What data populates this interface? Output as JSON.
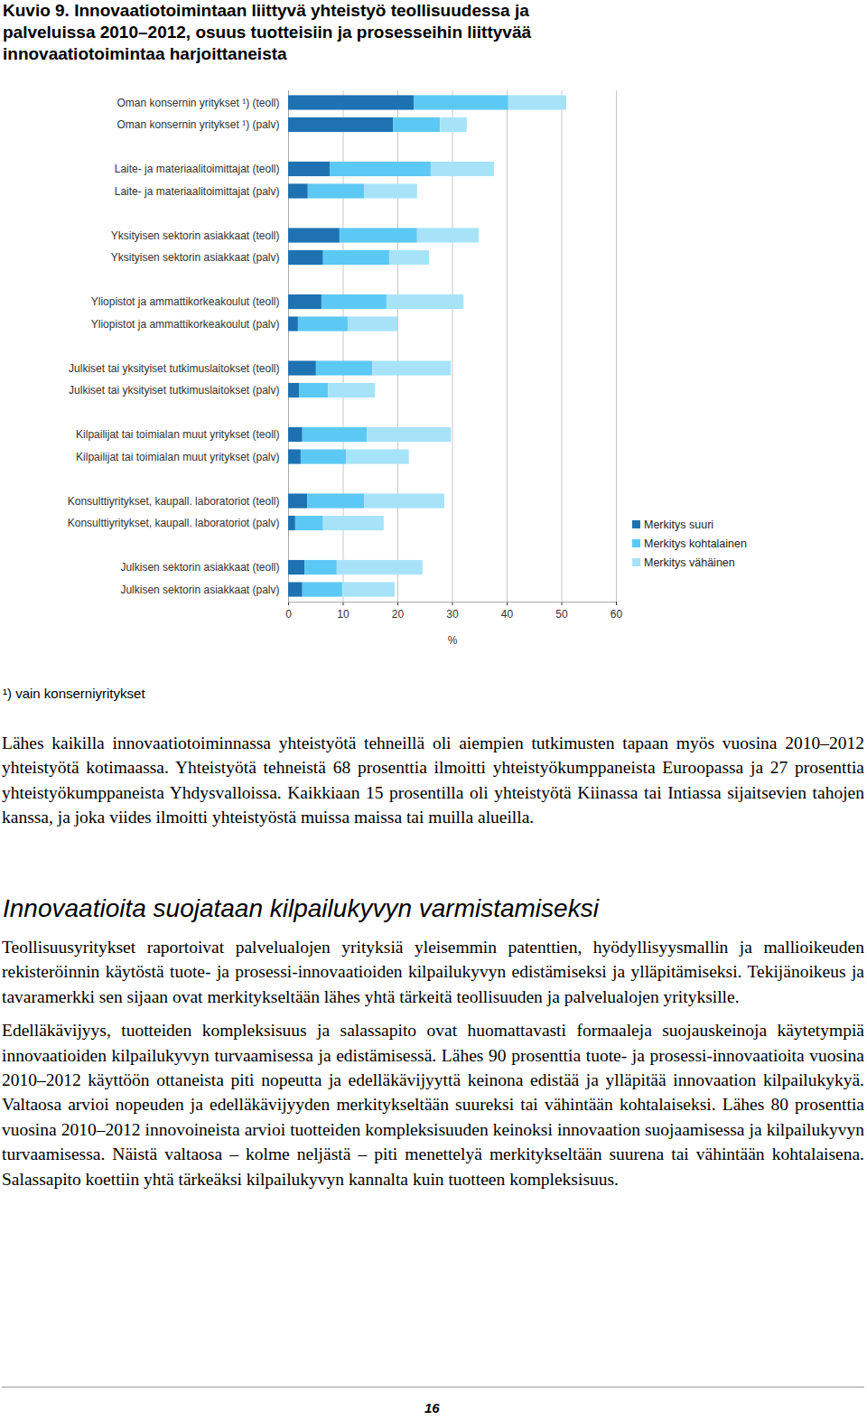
{
  "chart_data": {
    "type": "bar",
    "title": "Kuvio 9. Innovaatiotoimintaan liittyvä yhteistyö teollisuudessa ja palveluissa 2010–2012, osuus tuotteisiin ja prosesseihin liittyvää innovaatiotoimintaa harjoittaneista",
    "orientation": "horizontal",
    "stacked": true,
    "grid": true,
    "legend": "lower right",
    "xlabel": "%",
    "xlim": [
      0,
      60
    ],
    "xticks": [
      0,
      10,
      20,
      30,
      40,
      50,
      60
    ],
    "categories": [
      "Oman konsernin yritykset ¹) (teoll)",
      "Oman konsernin yritykset ¹) (palv)",
      "Laite- ja materiaalitoimittajat (teoll)",
      "Laite- ja materiaalitoimittajat (palv)",
      "Yksityisen sektorin asiakkaat (teoll)",
      "Yksityisen sektorin asiakkaat (palv)",
      "Yliopistot ja ammattikorkeakoulut (teoll)",
      "Yliopistot ja ammattikorkeakoulut (palv)",
      "Julkiset tai yksityiset tutkimuslaitokset (teoll)",
      "Julkiset tai yksityiset tutkimuslaitokset (palv)",
      "Kilpailijat tai toimialan muut yritykset (teoll)",
      "Kilpailijat tai toimialan muut yritykset (palv)",
      "Konsulttiyritykset, kaupall. laboratoriot (teoll)",
      "Konsulttiyritykset, kaupall. laboratoriot (palv)",
      "Julkisen sektorin asiakkaat (teoll)",
      "Julkisen sektorin asiakkaat (palv)"
    ],
    "series": [
      {
        "name": "Merkitys suuri",
        "color": "#1f72b2",
        "values": [
          23.0,
          19.2,
          7.6,
          3.6,
          9.4,
          6.4,
          6.1,
          1.8,
          5.1,
          2.0,
          2.6,
          2.3,
          3.5,
          1.3,
          3.0,
          2.6
        ]
      },
      {
        "name": "Merkitys kohtalainen",
        "color": "#5cc9f4",
        "values": [
          17.3,
          8.6,
          18.5,
          10.3,
          14.2,
          12.1,
          11.9,
          9.1,
          10.3,
          5.3,
          11.8,
          8.3,
          10.4,
          5.1,
          5.9,
          7.3
        ]
      },
      {
        "name": "Merkitys vähäinen",
        "color": "#a7e3f8",
        "values": [
          10.6,
          4.9,
          11.6,
          9.7,
          11.3,
          7.3,
          14.1,
          9.1,
          14.4,
          8.6,
          15.4,
          11.5,
          14.7,
          11.1,
          15.7,
          9.6
        ]
      }
    ]
  },
  "footnote": "¹) vain konserniyritykset",
  "paragraphs": [
    "Lähes kaikilla innovaatiotoiminnassa yhteistyötä tehneillä oli aiempien tutkimusten tapaan myös vuosina 2010–2012 yhteistyötä kotimaassa. Yhteistyötä tehneistä 68 prosenttia ilmoitti yhteistyökumppaneista Euroopassa ja 27 prosenttia yhteistyökumppaneista Yhdysvalloissa. Kaikkiaan 15 prosentilla oli yhteistyötä Kiinassa tai Intiassa sijaitsevien tahojen kanssa, ja joka viides ilmoitti yhteistyöstä muissa maissa tai muilla alueilla."
  ],
  "section": {
    "heading": "Innovaatioita suojataan kilpailukyvyn varmistamiseksi",
    "paragraphs": [
      "Teollisuusyritykset raportoivat palvelualojen yrityksiä yleisemmin patenttien, hyödyllisyysmallin ja mallioikeuden rekisteröinnin käytöstä tuote- ja prosessi-innovaatioiden kilpailukyvyn edistämiseksi ja ylläpitämiseksi. Tekijänoikeus ja tavaramerkki sen sijaan ovat merkitykseltään lähes yhtä tärkeitä teollisuuden ja palvelualojen yrityksille.",
      "Edelläkävijyys, tuotteiden kompleksisuus ja salassapito ovat huomattavasti formaaleja suojauskeinoja käytetympiä innovaatioiden kilpailukyvyn turvaamisessa ja edistämisessä. Lähes 90 prosenttia tuote- ja prosessi-innovaatioita vuosina 2010–2012 käyttöön ottaneista piti nopeutta ja edelläkävijyyttä keinona edistää ja ylläpitää innovaation kilpailukykyä. Valtaosa arvioi nopeuden ja edelläkävijyyden merkitykseltään suureksi tai vähintään kohtalaiseksi. Lähes 80 prosenttia vuosina 2010–2012 innovoineista arvioi tuotteiden kompleksisuuden keinoksi innovaation suojaamisessa ja kilpailukyvyn turvaamisessa. Näistä valtaosa – kolme neljästä – piti menettelyä merkitykseltään suurena tai vähintään kohtalaisena. Salassapito koettiin yhtä tärkeäksi kilpailukyvyn kannalta kuin tuotteen kompleksisuus."
    ]
  },
  "footer": {
    "page": "16"
  }
}
